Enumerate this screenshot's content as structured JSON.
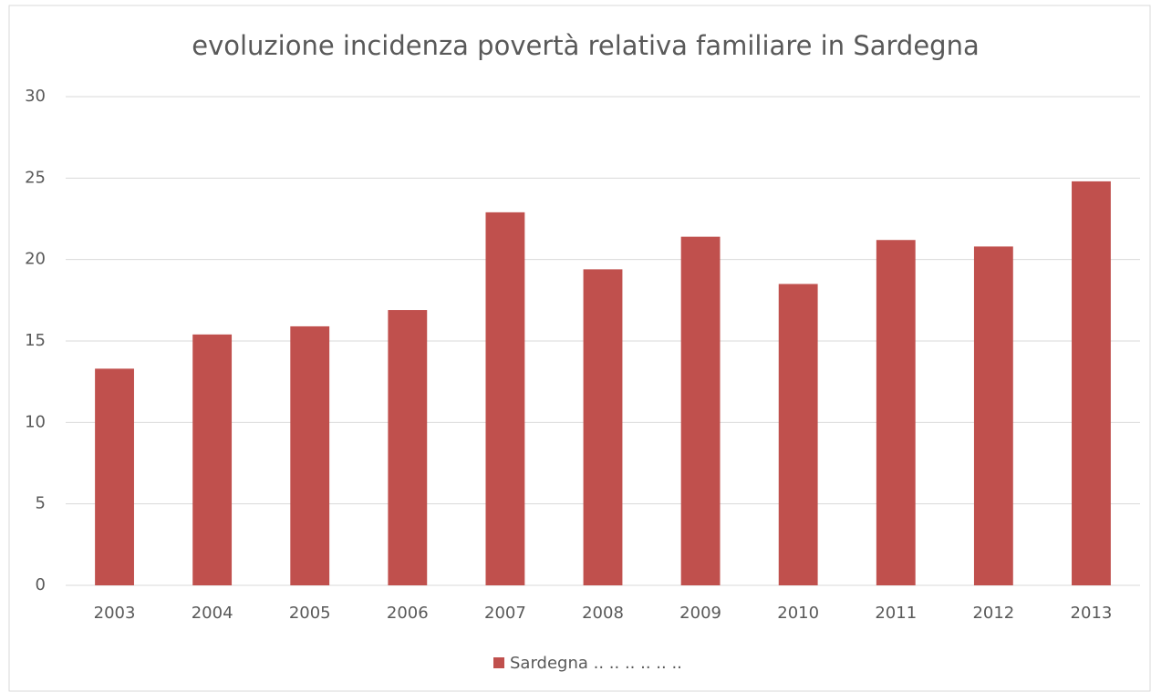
{
  "chart_data": {
    "type": "bar",
    "title": "evoluzione incidenza povertà relativa familiare in Sardegna",
    "categories": [
      "2003",
      "2004",
      "2005",
      "2006",
      "2007",
      "2008",
      "2009",
      "2010",
      "2011",
      "2012",
      "2013"
    ],
    "series": [
      {
        "name": "Sardegna .. .. .. .. .. ..",
        "color": "#c0504d",
        "values": [
          13.3,
          15.4,
          15.9,
          16.9,
          22.9,
          19.4,
          21.4,
          18.5,
          21.2,
          20.8,
          24.8
        ]
      }
    ],
    "ylim": [
      0,
      30
    ],
    "yticks": [
      0,
      5,
      10,
      15,
      20,
      25,
      30
    ],
    "grid": true,
    "legend": "bottom"
  }
}
